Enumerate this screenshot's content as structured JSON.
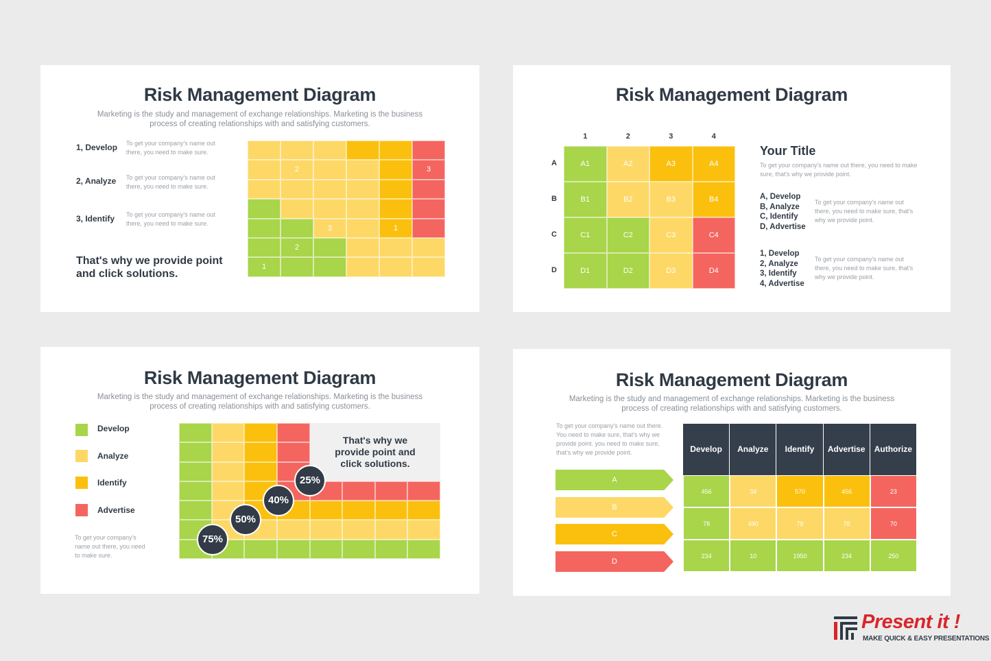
{
  "slide1": {
    "title": "Risk Management Diagram",
    "subtitle_line1": "Marketing is the study and management of exchange relationships. Marketing is the business",
    "subtitle_line2": "process of creating relationships with and satisfying customers.",
    "items": [
      {
        "label": "1, Develop",
        "desc1": "To get your company's name out",
        "desc2": "there, you need to make sure."
      },
      {
        "label": "2, Analyze",
        "desc1": "To get your company's name out",
        "desc2": "there, you need to make sure."
      },
      {
        "label": "3, Identify",
        "desc1": "To get your company's name out",
        "desc2": "there, you need to make sure."
      }
    ],
    "tagline_line1": "That's why we provide point",
    "tagline_line2": "and click solutions.",
    "grid_labels": {
      "l2a": "2",
      "l3a": "3",
      "l3b": "3",
      "l1a": "1",
      "l2b": "2",
      "l1b": "1"
    },
    "colors": {
      "green": "#a8d54a",
      "light_yellow": "#fdd866",
      "yellow": "#fbc00e",
      "red": "#f4655f"
    }
  },
  "slide2": {
    "title": "Risk Management Diagram",
    "cols": [
      "1",
      "2",
      "3",
      "4"
    ],
    "rows": [
      "A",
      "B",
      "C",
      "D"
    ],
    "cells": [
      [
        "A1",
        "A2",
        "A3",
        "A4"
      ],
      [
        "B1",
        "B2",
        "B3",
        "B4"
      ],
      [
        "C1",
        "C2",
        "C3",
        "C4"
      ],
      [
        "D1",
        "D2",
        "D3",
        "D4"
      ]
    ],
    "your_title": "Your Title",
    "your_desc1": "To get your company's name out there, you need to make",
    "your_desc2": "sure, that's why we provide point.",
    "list1": [
      "A, Develop",
      "B, Analyze",
      "C, Identify",
      "D, Advertise"
    ],
    "list1_desc": [
      "To get your company's name out",
      "there, you need to make sure, that's",
      "why we provide point."
    ],
    "list2": [
      "1, Develop",
      "2, Analyze",
      "3, Identify",
      "4, Advertise"
    ],
    "list2_desc": [
      "To get your company's name out",
      "there, you need to make sure, that's",
      "why we provide point."
    ]
  },
  "slide3": {
    "title": "Risk Management Diagram",
    "subtitle_line1": "Marketing is the study and management of exchange relationships. Marketing is the business",
    "subtitle_line2": "process of creating relationships with and satisfying customers.",
    "legend": [
      "Develop",
      "Analyze",
      "Identify",
      "Advertise"
    ],
    "note": [
      "To get your company's",
      "name out there, you need",
      "to make sure."
    ],
    "callout": [
      "That's why we",
      "provide point and",
      "click solutions."
    ],
    "percents": [
      "75%",
      "50%",
      "40%",
      "25%"
    ]
  },
  "slide4": {
    "title": "Risk Management Diagram",
    "subtitle_line1": "Marketing is the study and management of exchange relationships. Marketing is the business",
    "subtitle_line2": "process of creating relationships with and satisfying customers.",
    "note": [
      "To get your company's name out there.",
      "You need to make sure, that's why we",
      "provide point. you need to make sure,",
      "that's why we provide point."
    ],
    "arrows": [
      "A",
      "B",
      "C",
      "D"
    ],
    "headers": [
      "Develop",
      "Analyze",
      "Identify",
      "Advertise",
      "Authorize"
    ],
    "rows": [
      [
        "456",
        "34",
        "570",
        "456",
        "23"
      ],
      [
        "78",
        "490",
        "78",
        "78",
        "70"
      ],
      [
        "234",
        "10",
        "1950",
        "234",
        "250"
      ]
    ]
  },
  "brand": {
    "name": "Present it !",
    "tagline": "MAKE QUICK & EASY PRESENTATIONS"
  }
}
